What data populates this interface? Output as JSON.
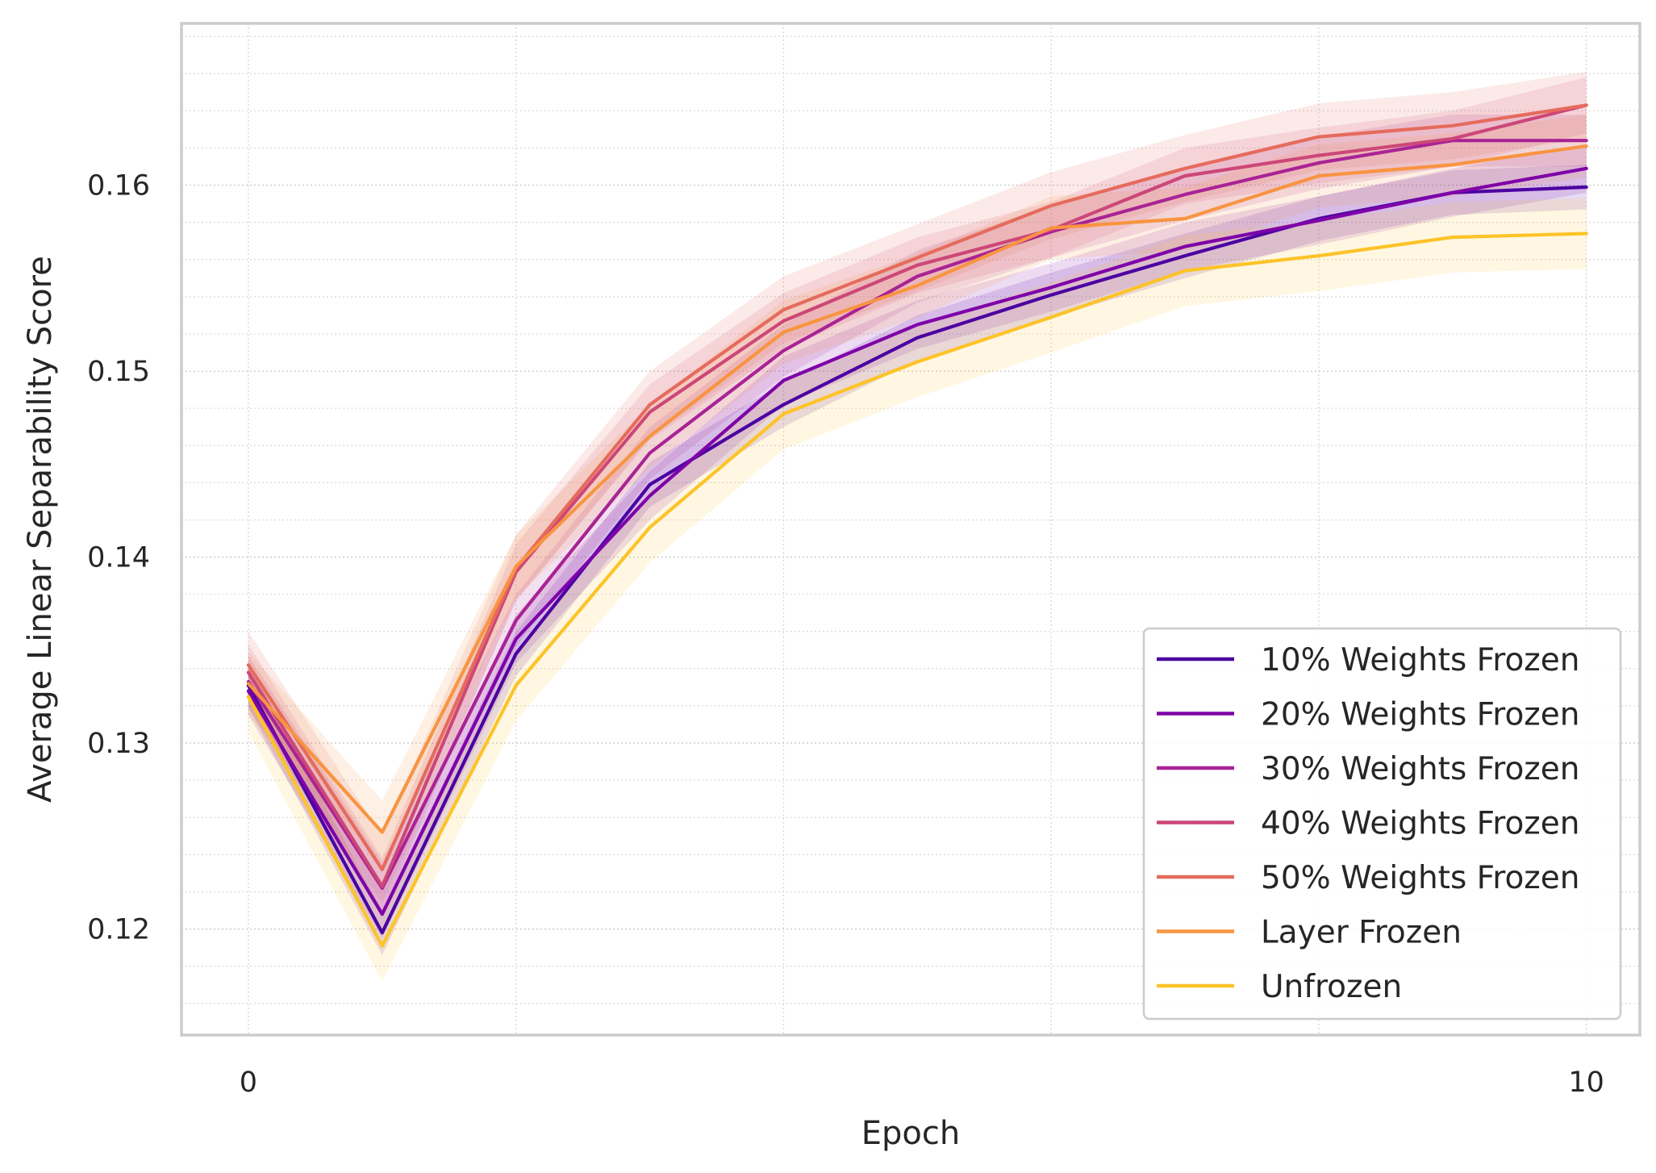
{
  "chart_data": {
    "type": "line",
    "title": "",
    "xlabel": "Epoch",
    "ylabel": "Average Linear Separability Score",
    "xlim": [
      -0.5,
      10.4
    ],
    "ylim": [
      0.1143,
      0.1687
    ],
    "x": [
      0,
      1,
      2,
      3,
      4,
      5,
      6,
      7,
      8,
      9,
      10
    ],
    "x_tick_labels": [
      "0",
      "10"
    ],
    "x_ticks": [
      0,
      10
    ],
    "x_minor_ticks": [
      2,
      4,
      6,
      8
    ],
    "y_tick_labels": [
      "0.12",
      "0.13",
      "0.14",
      "0.15",
      "0.16"
    ],
    "y_ticks": [
      0.12,
      0.13,
      0.14,
      0.15,
      0.16
    ],
    "y_minor_step": 0.002,
    "grid": true,
    "legend_position": "lower-right",
    "series": [
      {
        "name": "10% Weights Frozen",
        "color": "#4c02a1",
        "values": [
          0.1331,
          0.1198,
          0.1348,
          0.1439,
          0.1482,
          0.1518,
          0.1541,
          0.1562,
          0.1582,
          0.1596,
          0.1599
        ],
        "band": 0.0012
      },
      {
        "name": "20% Weights Frozen",
        "color": "#7e03a8",
        "values": [
          0.1328,
          0.1208,
          0.1356,
          0.1433,
          0.1495,
          0.1525,
          0.1545,
          0.1567,
          0.1581,
          0.1596,
          0.1609
        ],
        "band": 0.0013
      },
      {
        "name": "30% Weights Frozen",
        "color": "#a92395",
        "values": [
          0.1333,
          0.1222,
          0.1366,
          0.1456,
          0.1511,
          0.1551,
          0.1575,
          0.1595,
          0.1612,
          0.1624,
          0.1624
        ],
        "band": 0.0014
      },
      {
        "name": "40% Weights Frozen",
        "color": "#cc4778",
        "values": [
          0.1338,
          0.1223,
          0.1392,
          0.1478,
          0.1527,
          0.1557,
          0.1576,
          0.1605,
          0.1616,
          0.1625,
          0.1643
        ],
        "band": 0.0015
      },
      {
        "name": "50% Weights Frozen",
        "color": "#e56b5d",
        "values": [
          0.1342,
          0.1232,
          0.1394,
          0.1482,
          0.1533,
          0.1561,
          0.1589,
          0.1609,
          0.1626,
          0.1632,
          0.1643
        ],
        "band": 0.0018
      },
      {
        "name": "Layer Frozen",
        "color": "#f89441",
        "values": [
          0.1332,
          0.1252,
          0.1395,
          0.1465,
          0.1521,
          0.1546,
          0.1577,
          0.1582,
          0.1605,
          0.1611,
          0.1621
        ],
        "band": 0.0017
      },
      {
        "name": "Unfrozen",
        "color": "#fdc328",
        "values": [
          0.1325,
          0.1191,
          0.1331,
          0.1416,
          0.1477,
          0.1505,
          0.1529,
          0.1554,
          0.1562,
          0.1572,
          0.1574
        ],
        "band": 0.0019
      }
    ]
  }
}
